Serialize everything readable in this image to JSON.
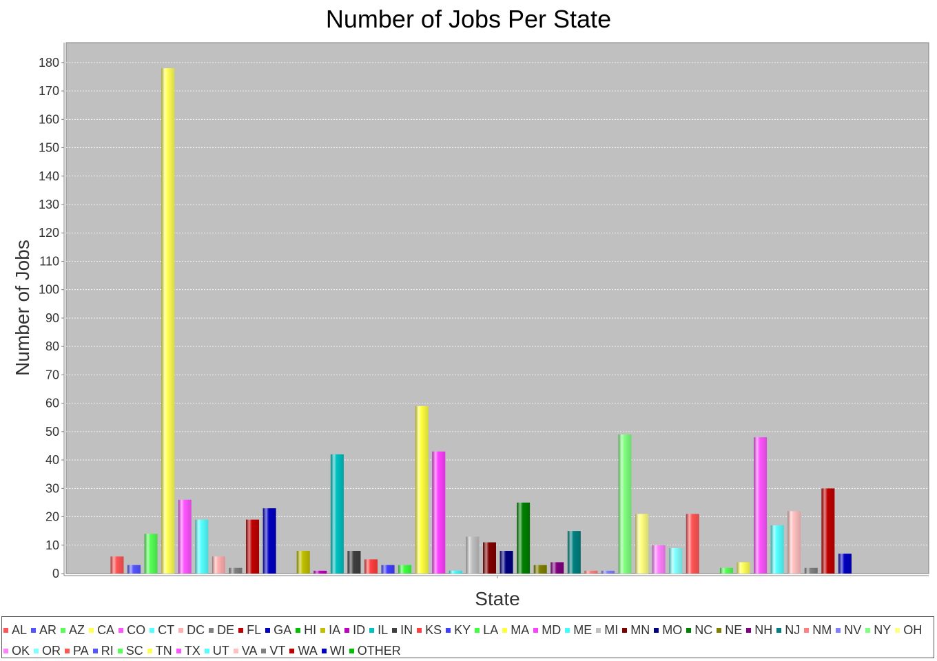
{
  "chart_data": {
    "type": "bar",
    "title": "Number of Jobs Per State",
    "xlabel": "State",
    "ylabel": "Number of Jobs",
    "ylim": [
      0,
      187
    ],
    "yticks": [
      0,
      10,
      20,
      30,
      40,
      50,
      60,
      70,
      80,
      90,
      100,
      110,
      120,
      130,
      140,
      150,
      160,
      170,
      180
    ],
    "grid": true,
    "legend_position": "bottom",
    "series": [
      {
        "name": "AL",
        "value": 6,
        "color": "#ff5555"
      },
      {
        "name": "AR",
        "value": 3,
        "color": "#5555ff"
      },
      {
        "name": "AZ",
        "value": 14,
        "color": "#55ff55"
      },
      {
        "name": "CA",
        "value": 178,
        "color": "#ffff55"
      },
      {
        "name": "CO",
        "value": 26,
        "color": "#ff55ff"
      },
      {
        "name": "CT",
        "value": 19,
        "color": "#55ffff"
      },
      {
        "name": "DC",
        "value": 6,
        "color": "#ffafaf"
      },
      {
        "name": "DE",
        "value": 2,
        "color": "#808080"
      },
      {
        "name": "FL",
        "value": 19,
        "color": "#c00000"
      },
      {
        "name": "GA",
        "value": 23,
        "color": "#0000c0"
      },
      {
        "name": "HI",
        "value": 0,
        "color": "#00c000"
      },
      {
        "name": "IA",
        "value": 8,
        "color": "#c0c000"
      },
      {
        "name": "ID",
        "value": 1,
        "color": "#c000c0"
      },
      {
        "name": "IL",
        "value": 42,
        "color": "#00c0c0"
      },
      {
        "name": "IN",
        "value": 8,
        "color": "#404040"
      },
      {
        "name": "KS",
        "value": 5,
        "color": "#ff4040"
      },
      {
        "name": "KY",
        "value": 3,
        "color": "#4040ff"
      },
      {
        "name": "LA",
        "value": 3,
        "color": "#40ff40"
      },
      {
        "name": "MA",
        "value": 59,
        "color": "#ffff40"
      },
      {
        "name": "MD",
        "value": 43,
        "color": "#ff40ff"
      },
      {
        "name": "ME",
        "value": 1,
        "color": "#40ffff"
      },
      {
        "name": "MI",
        "value": 13,
        "color": "#c0c0c0"
      },
      {
        "name": "MN",
        "value": 11,
        "color": "#800000"
      },
      {
        "name": "MO",
        "value": 8,
        "color": "#000080"
      },
      {
        "name": "NC",
        "value": 25,
        "color": "#008000"
      },
      {
        "name": "NE",
        "value": 3,
        "color": "#808000"
      },
      {
        "name": "NH",
        "value": 4,
        "color": "#800080"
      },
      {
        "name": "NJ",
        "value": 15,
        "color": "#008080"
      },
      {
        "name": "NM",
        "value": 1,
        "color": "#ff8080"
      },
      {
        "name": "NV",
        "value": 1,
        "color": "#8080ff"
      },
      {
        "name": "NY",
        "value": 49,
        "color": "#80ff80"
      },
      {
        "name": "OH",
        "value": 21,
        "color": "#ffff80"
      },
      {
        "name": "OK",
        "value": 10,
        "color": "#ff80ff"
      },
      {
        "name": "OR",
        "value": 9,
        "color": "#80ffff"
      },
      {
        "name": "PA",
        "value": 21,
        "color": "#ff5555"
      },
      {
        "name": "RI",
        "value": 0,
        "color": "#5555ff"
      },
      {
        "name": "SC",
        "value": 2,
        "color": "#55ff55"
      },
      {
        "name": "TN",
        "value": 4,
        "color": "#ffff55"
      },
      {
        "name": "TX",
        "value": 48,
        "color": "#ff55ff"
      },
      {
        "name": "UT",
        "value": 17,
        "color": "#55ffff"
      },
      {
        "name": "VA",
        "value": 22,
        "color": "#ffc0c0"
      },
      {
        "name": "VT",
        "value": 2,
        "color": "#808080"
      },
      {
        "name": "WA",
        "value": 30,
        "color": "#c00000"
      },
      {
        "name": "WI",
        "value": 7,
        "color": "#0000c0"
      },
      {
        "name": "OTHER",
        "value": 0,
        "color": "#00c000"
      }
    ]
  }
}
